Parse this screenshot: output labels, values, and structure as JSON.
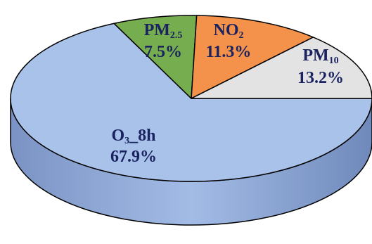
{
  "chart_data": {
    "type": "pie",
    "style": "3d",
    "slices": [
      {
        "name": "O₃_8h",
        "label_main": "O",
        "label_sub": "3",
        "label_tail": "_8h",
        "value": 67.9,
        "value_text": "67.9%",
        "color": "#a9c2ea",
        "side_color": "#8fa9d8"
      },
      {
        "name": "PM₂.₅",
        "label_main": "PM",
        "label_sub": "2.5",
        "label_tail": "",
        "value": 7.5,
        "value_text": "7.5%",
        "color": "#76ad4e",
        "side_color": "#5f9140"
      },
      {
        "name": "NO₂",
        "label_main": "NO",
        "label_sub": "2",
        "label_tail": "",
        "value": 11.3,
        "value_text": "11.3%",
        "color": "#f4914a",
        "side_color": "#d4763a"
      },
      {
        "name": "PM₁₀",
        "label_main": "PM",
        "label_sub": "10",
        "label_tail": "",
        "value": 13.2,
        "value_text": "13.2%",
        "color": "#e3e3e3",
        "side_color": "#c4c4c4"
      }
    ]
  }
}
